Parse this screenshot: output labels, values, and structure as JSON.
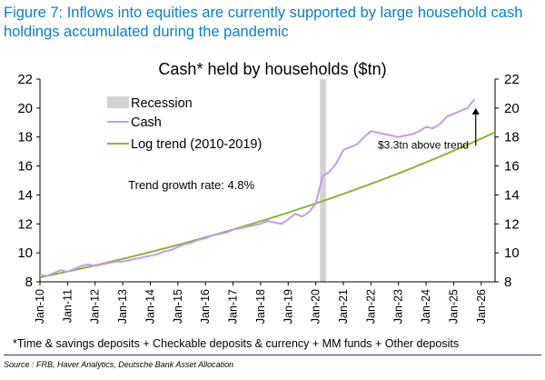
{
  "figure": {
    "title": "Figure 7: Inflows into equities are currently supported by large household cash holdings accumulated during the pandemic",
    "footnote": "*Time & savings deposits + Checkable deposits & currency + MM funds + Other deposits",
    "source": "Source : FRB, Haver Analytics, Deutsche Bank Asset Allocation"
  },
  "chart_data": {
    "type": "line",
    "title": "Cash* held by households ($tn)",
    "xlabel": "",
    "ylabel": "",
    "ylim": [
      8,
      22
    ],
    "yticks": [
      8,
      10,
      12,
      14,
      16,
      18,
      20,
      22
    ],
    "xlim": [
      2010.0,
      2026.5
    ],
    "xtick_labels": [
      "Jan-10",
      "Jan-11",
      "Jan-12",
      "Jan-13",
      "Jan-14",
      "Jan-15",
      "Jan-16",
      "Jan-17",
      "Jan-18",
      "Jan-19",
      "Jan-20",
      "Jan-21",
      "Jan-22",
      "Jan-23",
      "Jan-24",
      "Jan-25",
      "Jan-26"
    ],
    "grid": false,
    "legend_position": "top-left",
    "recession": {
      "name": "Recession",
      "start": 2020.15,
      "end": 2020.37,
      "color": "#d3d3d3"
    },
    "series": [
      {
        "name": "Cash",
        "color": "#c39bed",
        "x": [
          2010.0,
          2010.25,
          2010.5,
          2010.75,
          2011.0,
          2011.25,
          2011.5,
          2011.75,
          2012.0,
          2012.25,
          2012.5,
          2012.75,
          2013.0,
          2013.25,
          2013.5,
          2013.75,
          2014.0,
          2014.25,
          2014.5,
          2014.75,
          2015.0,
          2015.25,
          2015.5,
          2015.75,
          2016.0,
          2016.25,
          2016.5,
          2016.75,
          2017.0,
          2017.25,
          2017.5,
          2017.75,
          2018.0,
          2018.25,
          2018.5,
          2018.75,
          2019.0,
          2019.25,
          2019.5,
          2019.75,
          2020.0,
          2020.25,
          2020.5,
          2020.75,
          2021.0,
          2021.25,
          2021.5,
          2021.75,
          2022.0,
          2022.25,
          2022.5,
          2022.75,
          2023.0,
          2023.25,
          2023.5,
          2023.75,
          2024.0,
          2024.25,
          2024.5,
          2024.75,
          2025.0,
          2025.25,
          2025.5,
          2025.75
        ],
        "values": [
          8.5,
          8.4,
          8.6,
          8.8,
          8.7,
          8.9,
          9.1,
          9.2,
          9.1,
          9.2,
          9.3,
          9.4,
          9.4,
          9.5,
          9.6,
          9.7,
          9.8,
          9.9,
          10.1,
          10.2,
          10.4,
          10.6,
          10.7,
          10.9,
          11.0,
          11.2,
          11.3,
          11.4,
          11.6,
          11.7,
          11.8,
          11.9,
          12.0,
          12.2,
          12.1,
          12.0,
          12.3,
          12.7,
          12.5,
          12.8,
          13.4,
          15.3,
          15.6,
          16.2,
          17.1,
          17.3,
          17.5,
          18.0,
          18.4,
          18.3,
          18.2,
          18.1,
          18.0,
          18.1,
          18.2,
          18.4,
          18.7,
          18.6,
          18.9,
          19.4,
          19.6,
          19.8,
          20.0,
          20.6
        ]
      },
      {
        "name": "Log trend (2010-2019)",
        "color": "#8db33c",
        "start": {
          "x": 2010.0,
          "y": 8.3
        },
        "growth_rate": 0.048,
        "end_x": 2026.5
      }
    ],
    "annotations": [
      {
        "text": "Trend growth rate: 4.8%",
        "x": 2013.2,
        "y": 14.4
      },
      {
        "text": "$3.3tn above trend",
        "x": 2023.9,
        "y": 17.2
      },
      {
        "arrow_from": {
          "x": 2025.8,
          "y": 17.4
        },
        "arrow_to": {
          "x": 2025.8,
          "y": 20.0
        }
      }
    ]
  }
}
